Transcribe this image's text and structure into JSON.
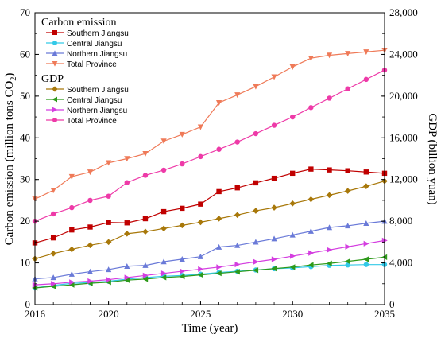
{
  "chart_data": {
    "type": "line",
    "x": [
      2016,
      2017,
      2018,
      2019,
      2020,
      2021,
      2022,
      2023,
      2024,
      2025,
      2026,
      2027,
      2028,
      2029,
      2030,
      2031,
      2032,
      2033,
      2034,
      2035
    ],
    "x_ticks": [
      "2016",
      "2020",
      "2025",
      "2030",
      "2035"
    ],
    "xlabel": "Time (year)",
    "xlim": [
      2016,
      2035
    ],
    "ylabel_left_pre": "Carbon emission (million tons CO",
    "ylabel_left_sub": "2",
    "ylabel_left_post": ")",
    "ylim_left": [
      0,
      70
    ],
    "yticks_left": [
      "0",
      "10",
      "20",
      "30",
      "40",
      "50",
      "60",
      "70"
    ],
    "ylabel_right": "GDP (billion yuan)",
    "ylim_right": [
      0,
      28000
    ],
    "yticks_right": [
      "0",
      "4,000",
      "8,000",
      "12,000",
      "16,000",
      "20,000",
      "24,000",
      "28,000"
    ],
    "legend_groups": [
      {
        "title": "Carbon emission",
        "axis": "left",
        "series": [
          {
            "name": "Southern Jiangsu",
            "color": "#c00000",
            "marker": "square",
            "values": [
              14.8,
              16.0,
              17.9,
              18.6,
              19.7,
              19.6,
              20.6,
              22.3,
              23.1,
              24.1,
              27.1,
              28.0,
              29.2,
              30.3,
              31.5,
              32.5,
              32.3,
              32.1,
              31.8,
              31.5
            ]
          },
          {
            "name": "Central Jiangsu",
            "color": "#33c9e8",
            "marker": "circle",
            "values": [
              4.0,
              4.6,
              5.1,
              5.3,
              5.6,
              6.1,
              6.5,
              6.8,
              7.0,
              7.3,
              7.7,
              8.0,
              8.3,
              8.6,
              8.8,
              9.1,
              9.4,
              9.5,
              9.6,
              9.6
            ]
          },
          {
            "name": "Northern Jiangsu",
            "color": "#6a7ad8",
            "marker": "triangle-up",
            "values": [
              6.2,
              6.5,
              7.3,
              7.9,
              8.4,
              9.2,
              9.4,
              10.3,
              10.9,
              11.5,
              13.8,
              14.2,
              15.0,
              15.8,
              16.7,
              17.6,
              18.5,
              18.9,
              19.5,
              20.0
            ]
          },
          {
            "name": "Total Province",
            "color": "#ef7a58",
            "marker": "triangle-down",
            "values": [
              25.3,
              27.4,
              30.7,
              31.8,
              34.0,
              35.0,
              36.2,
              39.2,
              40.8,
              42.6,
              48.4,
              50.3,
              52.3,
              54.6,
              57.0,
              59.1,
              59.8,
              60.2,
              60.6,
              61.0
            ]
          }
        ]
      },
      {
        "title": "GDP",
        "axis": "right",
        "series": [
          {
            "name": "Southern Jiangsu",
            "color": "#a8780a",
            "marker": "diamond",
            "values": [
              4400,
              4900,
              5300,
              5700,
              6000,
              6800,
              7000,
              7300,
              7600,
              7900,
              8250,
              8600,
              9000,
              9300,
              9700,
              10100,
              10500,
              10900,
              11350,
              11850
            ]
          },
          {
            "name": "Central Jiangsu",
            "color": "#2e9a1a",
            "marker": "triangle-left",
            "values": [
              1600,
              1750,
              1900,
              2050,
              2150,
              2350,
              2450,
              2600,
              2700,
              2850,
              3000,
              3150,
              3300,
              3450,
              3600,
              3800,
              3950,
              4150,
              4350,
              4550
            ]
          },
          {
            "name": "Northern Jiangsu",
            "color": "#d43ee0",
            "marker": "triangle-right",
            "values": [
              1900,
              2000,
              2150,
              2250,
              2400,
              2600,
              2800,
              3000,
              3200,
              3400,
              3600,
              3850,
              4100,
              4350,
              4650,
              4950,
              5250,
              5550,
              5850,
              6150
            ]
          },
          {
            "name": "Total Province",
            "color": "#ee3aa8",
            "marker": "circle",
            "values": [
              8000,
              8700,
              9300,
              10000,
              10400,
              11700,
              12400,
              12900,
              13500,
              14200,
              14900,
              15600,
              16400,
              17200,
              18000,
              18900,
              19800,
              20700,
              21600,
              22500
            ]
          }
        ]
      }
    ]
  }
}
